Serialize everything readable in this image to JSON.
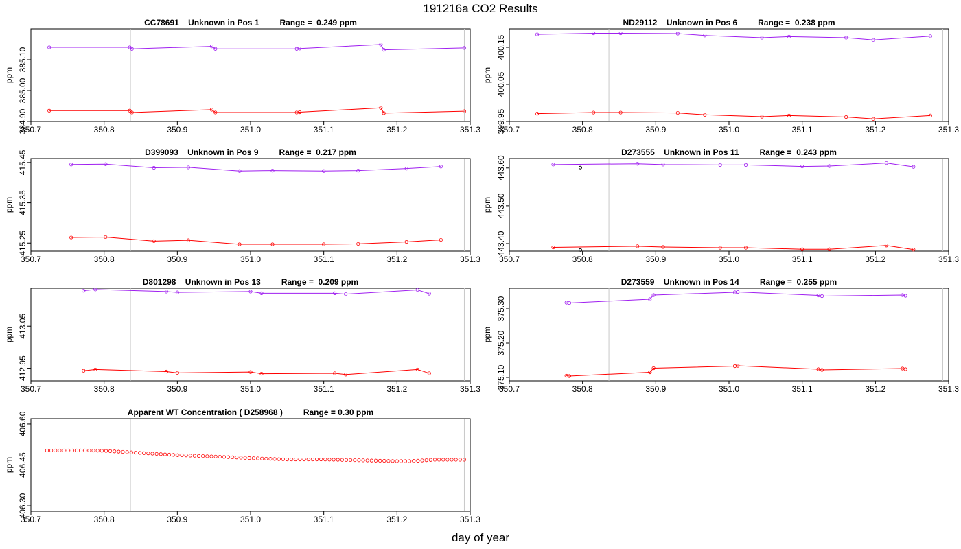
{
  "page": {
    "title": "191216a  CO2 Results",
    "x_axis_label": "day of year"
  },
  "chart_data": [
    {
      "type": "line",
      "title": "CC78691    Unknown in Pos 1         Range =  0.249 ppm",
      "ylabel": "ppm",
      "xlim": [
        350.7,
        351.3
      ],
      "ylim": [
        384.9,
        385.2
      ],
      "xticks": [
        "350.7",
        "350.8",
        "350.9",
        "351.0",
        "351.1",
        "351.2",
        "351.3"
      ],
      "yticks": [
        384.9,
        385.0,
        385.1
      ],
      "ytick_labels": [
        "384.90",
        "385.00",
        "385.10"
      ],
      "vlines": [
        350.836,
        351.292
      ],
      "series": [
        {
          "color": "#a020f0",
          "x": [
            350.725,
            350.835,
            350.838,
            350.947,
            350.952,
            351.063,
            351.067,
            351.178,
            351.182,
            351.292
          ],
          "y": [
            385.14,
            385.14,
            385.135,
            385.143,
            385.135,
            385.135,
            385.136,
            385.149,
            385.132,
            385.138
          ]
        },
        {
          "color": "#ff0000",
          "x": [
            350.725,
            350.835,
            350.838,
            350.947,
            350.952,
            351.063,
            351.067,
            351.178,
            351.182,
            351.292
          ],
          "y": [
            384.935,
            384.935,
            384.929,
            384.938,
            384.929,
            384.929,
            384.93,
            384.944,
            384.927,
            384.933
          ]
        }
      ]
    },
    {
      "type": "line",
      "title": "ND29112    Unknown in Pos 6         Range =  0.238 ppm",
      "ylabel": "ppm",
      "xlim": [
        350.7,
        351.3
      ],
      "ylim": [
        399.95,
        400.2
      ],
      "xticks": [
        "350.7",
        "350.8",
        "350.9",
        "351.0",
        "351.1",
        "351.2",
        "351.3"
      ],
      "yticks": [
        399.95,
        400.05,
        400.15
      ],
      "ytick_labels": [
        "399.95",
        "400.05",
        "400.15"
      ],
      "vlines": [
        350.836,
        351.292
      ],
      "series": [
        {
          "color": "#a020f0",
          "x": [
            350.738,
            350.815,
            350.852,
            350.93,
            350.967,
            351.045,
            351.082,
            351.16,
            351.197,
            351.275
          ],
          "y": [
            400.185,
            400.188,
            400.188,
            400.187,
            400.182,
            400.176,
            400.179,
            400.176,
            400.17,
            400.18
          ]
        },
        {
          "color": "#ff0000",
          "x": [
            350.738,
            350.815,
            350.852,
            350.93,
            350.967,
            351.045,
            351.082,
            351.16,
            351.197,
            351.275
          ],
          "y": [
            399.971,
            399.974,
            399.974,
            399.973,
            399.968,
            399.963,
            399.966,
            399.962,
            399.957,
            399.966
          ]
        }
      ]
    },
    {
      "type": "line",
      "title": "D399093    Unknown in Pos 9         Range =  0.217 ppm",
      "ylabel": "ppm",
      "xlim": [
        350.7,
        351.3
      ],
      "ylim": [
        415.23,
        415.46
      ],
      "xticks": [
        "350.7",
        "350.8",
        "350.9",
        "351.0",
        "351.1",
        "351.2",
        "351.3"
      ],
      "yticks": [
        415.25,
        415.35,
        415.45
      ],
      "ytick_labels": [
        "415.25",
        "415.35",
        "415.45"
      ],
      "vlines": [
        350.836,
        351.292
      ],
      "series": [
        {
          "color": "#a020f0",
          "x": [
            350.755,
            350.802,
            350.868,
            350.915,
            350.985,
            351.03,
            351.1,
            351.147,
            351.213,
            351.26
          ],
          "y": [
            415.445,
            415.446,
            415.437,
            415.438,
            415.429,
            415.43,
            415.429,
            415.43,
            415.435,
            415.44
          ]
        },
        {
          "color": "#ff0000",
          "x": [
            350.755,
            350.802,
            350.868,
            350.915,
            350.985,
            351.03,
            351.1,
            351.147,
            351.213,
            351.26
          ],
          "y": [
            415.264,
            415.265,
            415.255,
            415.257,
            415.247,
            415.247,
            415.247,
            415.248,
            415.253,
            415.258
          ]
        }
      ]
    },
    {
      "type": "line",
      "title": "D273555    Unknown in Pos 11         Range =  0.243 ppm",
      "ylabel": "ppm",
      "xlim": [
        350.7,
        351.3
      ],
      "ylim": [
        443.38,
        443.625
      ],
      "xticks": [
        "350.7",
        "350.8",
        "350.9",
        "351.0",
        "351.1",
        "351.2",
        "351.3"
      ],
      "yticks": [
        443.4,
        443.5,
        443.6
      ],
      "ytick_labels": [
        "443.40",
        "443.50",
        "443.60"
      ],
      "vlines": [
        350.836,
        351.292
      ],
      "series": [
        {
          "color": "#a020f0",
          "x": [
            350.76,
            350.875,
            350.91,
            350.988,
            351.023,
            351.1,
            351.137,
            351.215,
            351.252
          ],
          "y": [
            443.609,
            443.611,
            443.609,
            443.608,
            443.608,
            443.604,
            443.605,
            443.613,
            443.603
          ]
        },
        {
          "color": "#ff0000",
          "x": [
            350.76,
            350.875,
            350.91,
            350.988,
            351.023,
            351.1,
            351.137,
            351.215,
            351.252
          ],
          "y": [
            443.39,
            443.393,
            443.391,
            443.389,
            443.389,
            443.385,
            443.385,
            443.395,
            443.384
          ]
        }
      ],
      "extra_points": {
        "color": "#000000",
        "x": [
          350.797,
          350.797
        ],
        "y": [
          443.601,
          443.383
        ]
      }
    },
    {
      "type": "line",
      "title": "D801298    Unknown in Pos 13         Range =  0.209 ppm",
      "ylabel": "ppm",
      "xlim": [
        350.7,
        351.3
      ],
      "ylim": [
        412.92,
        413.14
      ],
      "xticks": [
        "350.7",
        "350.8",
        "350.9",
        "351.0",
        "351.1",
        "351.2",
        "351.3"
      ],
      "yticks": [
        412.95,
        413.05
      ],
      "ytick_labels": [
        "412.95",
        "413.05"
      ],
      "vlines": [
        350.836,
        351.292
      ],
      "series": [
        {
          "color": "#a020f0",
          "x": [
            350.772,
            350.788,
            350.885,
            350.9,
            351.0,
            351.015,
            351.115,
            351.13,
            351.228,
            351.244
          ],
          "y": [
            413.134,
            413.137,
            413.132,
            413.13,
            413.132,
            413.128,
            413.128,
            413.126,
            413.136,
            413.127
          ]
        },
        {
          "color": "#ff0000",
          "x": [
            350.772,
            350.788,
            350.885,
            350.9,
            351.0,
            351.015,
            351.115,
            351.13,
            351.228,
            351.244
          ],
          "y": [
            412.944,
            412.947,
            412.942,
            412.939,
            412.941,
            412.937,
            412.938,
            412.935,
            412.947,
            412.938
          ]
        }
      ]
    },
    {
      "type": "line",
      "title": "D273559    Unknown in Pos 14         Range =  0.255 ppm",
      "ylabel": "ppm",
      "xlim": [
        350.7,
        351.3
      ],
      "ylim": [
        375.09,
        375.36
      ],
      "xticks": [
        "350.7",
        "350.8",
        "350.9",
        "351.0",
        "351.1",
        "351.2",
        "351.3"
      ],
      "yticks": [
        375.1,
        375.2,
        375.3
      ],
      "ytick_labels": [
        "375.10",
        "375.20",
        "375.30"
      ],
      "vlines": [
        350.836,
        351.292
      ],
      "series": [
        {
          "color": "#a020f0",
          "x": [
            350.778,
            350.782,
            350.892,
            350.897,
            351.008,
            351.012,
            351.122,
            351.127,
            351.237,
            351.241
          ],
          "y": [
            375.318,
            375.317,
            375.328,
            375.34,
            375.348,
            375.349,
            375.339,
            375.337,
            375.34,
            375.338
          ]
        },
        {
          "color": "#ff0000",
          "x": [
            350.778,
            350.782,
            350.892,
            350.897,
            351.008,
            351.012,
            351.122,
            351.127,
            351.237,
            351.241
          ],
          "y": [
            375.105,
            375.104,
            375.115,
            375.127,
            375.133,
            375.134,
            375.124,
            375.122,
            375.126,
            375.124
          ]
        }
      ]
    },
    {
      "type": "scatter",
      "title": "Apparent WT Concentration ( D258968 )         Range = 0.30 ppm",
      "ylabel": "ppm",
      "xlim": [
        350.7,
        351.3
      ],
      "ylim": [
        406.28,
        406.62
      ],
      "xticks": [
        "350.7",
        "350.8",
        "350.9",
        "351.0",
        "351.1",
        "351.2",
        "351.3"
      ],
      "yticks": [
        406.3,
        406.45,
        406.6
      ],
      "ytick_labels": [
        "406.30",
        "406.45",
        "406.60"
      ],
      "vlines": [
        350.836,
        351.292
      ],
      "series": [
        {
          "color": "#ff0000",
          "generated": true,
          "x": [
            350.722,
            350.78,
            350.8,
            350.85,
            350.9,
            350.95,
            351.0,
            351.05,
            351.1,
            351.15,
            351.2,
            351.22,
            351.25,
            351.292
          ],
          "y": [
            406.503,
            406.503,
            406.502,
            406.494,
            406.486,
            406.481,
            406.475,
            406.47,
            406.47,
            406.467,
            406.464,
            406.464,
            406.469,
            406.469
          ]
        }
      ]
    }
  ]
}
